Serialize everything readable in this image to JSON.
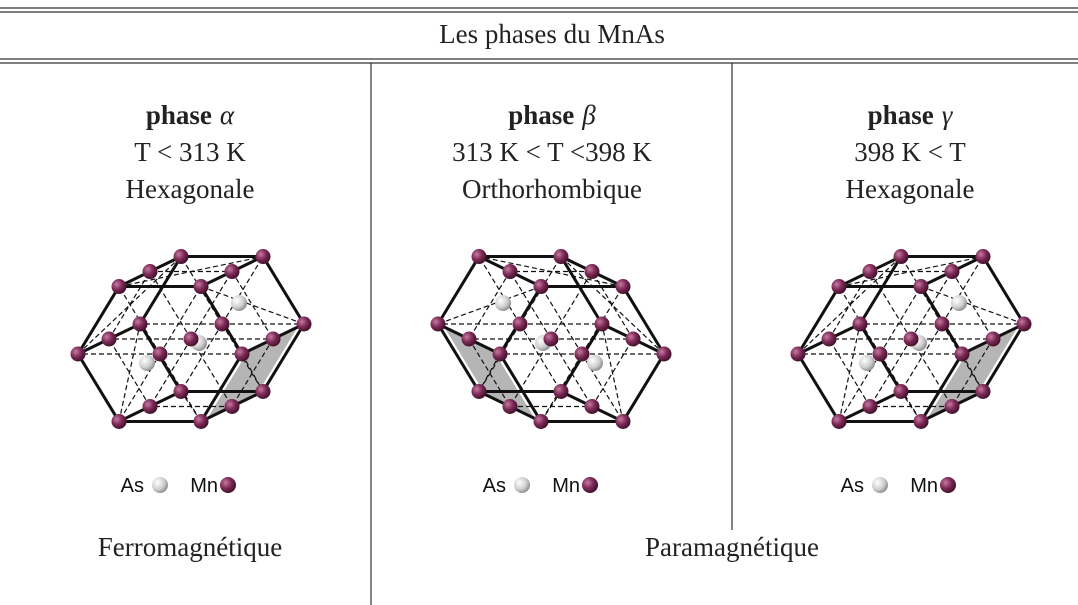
{
  "title": "Les phases du MnAs",
  "phases": [
    {
      "name": "phase",
      "symbol": "α",
      "condition": "T < 313 K",
      "structure": "Hexagonale"
    },
    {
      "name": "phase",
      "symbol": "β",
      "condition": "313 K < T <398 K",
      "structure": "Orthorhombique"
    },
    {
      "name": "phase",
      "symbol": "γ",
      "condition": "398 K < T",
      "structure": "Hexagonale"
    }
  ],
  "legend": {
    "as": "As",
    "mn": "Mn"
  },
  "magnetism": [
    "Ferromagnétique",
    "Paramagnétique"
  ]
}
